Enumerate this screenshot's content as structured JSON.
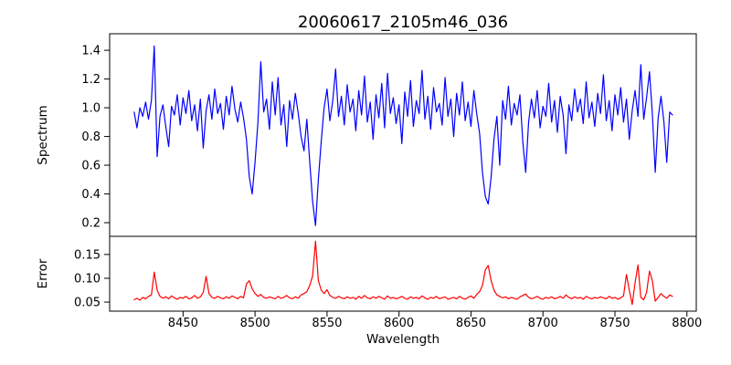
{
  "figure": {
    "background_color": "#ffffff",
    "axis_color": "#000000"
  },
  "chart_data": {
    "type": "line",
    "title": "20060617_2105m46_036",
    "xlabel": "Wavelength",
    "grid": false,
    "legend": "none",
    "xlim": [
      8399,
      8806.5
    ],
    "x_ticks": [
      8450,
      8500,
      8550,
      8600,
      8650,
      8700,
      8750,
      8800
    ],
    "x_start": 8416,
    "x_step": 2,
    "subplots": [
      {
        "name": "spectrum",
        "ylabel": "Spectrum",
        "color": "#0000ff",
        "ylim": [
          0.105,
          1.515
        ],
        "y_ticks": [
          0.2,
          0.4,
          0.6,
          0.8,
          1.0,
          1.2,
          1.4
        ],
        "y_tick_decimals": 1,
        "features_note": "absorption lines near 8498, 8542, 8662; spike to 1.43 near 8430",
        "y_values": [
          0.97,
          0.86,
          1.0,
          0.94,
          1.04,
          0.92,
          1.05,
          1.43,
          0.66,
          0.94,
          1.02,
          0.87,
          0.73,
          1.01,
          0.95,
          1.09,
          0.88,
          1.07,
          0.96,
          1.12,
          0.91,
          1.02,
          0.84,
          1.06,
          0.72,
          0.98,
          1.09,
          0.92,
          1.13,
          0.96,
          1.03,
          0.85,
          1.08,
          0.95,
          1.15,
          0.99,
          0.9,
          1.04,
          0.93,
          0.78,
          0.52,
          0.4,
          0.62,
          0.9,
          1.32,
          0.97,
          1.06,
          0.85,
          1.18,
          0.95,
          1.21,
          0.88,
          1.02,
          0.73,
          1.05,
          0.92,
          1.1,
          0.96,
          0.8,
          0.7,
          0.92,
          0.62,
          0.35,
          0.18,
          0.5,
          0.77,
          1.0,
          1.13,
          0.91,
          1.05,
          1.27,
          0.94,
          1.08,
          0.88,
          1.16,
          0.97,
          1.06,
          0.84,
          1.12,
          0.95,
          1.22,
          0.9,
          1.04,
          0.78,
          1.09,
          0.93,
          1.17,
          0.86,
          1.24,
          0.96,
          1.07,
          0.89,
          1.02,
          0.75,
          1.11,
          0.94,
          1.19,
          0.87,
          1.05,
          0.96,
          1.26,
          0.92,
          1.08,
          0.85,
          1.14,
          0.97,
          1.03,
          0.88,
          1.21,
          0.94,
          1.06,
          0.8,
          1.1,
          0.95,
          1.18,
          0.91,
          1.04,
          0.87,
          1.12,
          0.96,
          0.82,
          0.55,
          0.38,
          0.33,
          0.52,
          0.78,
          0.94,
          0.6,
          1.05,
          0.92,
          1.15,
          0.88,
          1.03,
          0.95,
          1.09,
          0.76,
          0.55,
          0.9,
          1.06,
          0.93,
          1.12,
          0.86,
          1.01,
          0.94,
          1.17,
          0.9,
          1.05,
          0.83,
          1.08,
          0.95,
          0.68,
          1.02,
          0.91,
          1.13,
          0.97,
          1.06,
          0.89,
          1.18,
          0.93,
          1.04,
          0.87,
          1.1,
          0.96,
          1.23,
          0.91,
          1.05,
          0.84,
          1.09,
          0.95,
          1.14,
          0.9,
          1.06,
          0.78,
          0.98,
          1.12,
          0.94,
          1.3,
          0.92,
          1.07,
          1.25,
          0.96,
          0.55,
          0.93,
          1.08,
          0.9,
          0.62,
          0.97,
          0.95
        ]
      },
      {
        "name": "error",
        "ylabel": "Error",
        "color": "#ff0000",
        "ylim": [
          0.031,
          0.188
        ],
        "y_ticks": [
          0.05,
          0.1,
          0.15
        ],
        "y_tick_decimals": 2,
        "features_note": "baseline ~0.06 with spikes near 8430, 8466, 8496, 8542 (0.18), 8662, 8758-8778",
        "y_values": [
          0.055,
          0.058,
          0.054,
          0.06,
          0.057,
          0.062,
          0.065,
          0.113,
          0.075,
          0.062,
          0.058,
          0.061,
          0.057,
          0.063,
          0.059,
          0.056,
          0.06,
          0.058,
          0.062,
          0.057,
          0.059,
          0.064,
          0.058,
          0.061,
          0.07,
          0.104,
          0.068,
          0.06,
          0.058,
          0.062,
          0.059,
          0.057,
          0.061,
          0.058,
          0.063,
          0.06,
          0.057,
          0.062,
          0.059,
          0.088,
          0.095,
          0.078,
          0.068,
          0.062,
          0.066,
          0.06,
          0.058,
          0.061,
          0.059,
          0.057,
          0.062,
          0.058,
          0.06,
          0.064,
          0.059,
          0.057,
          0.061,
          0.058,
          0.065,
          0.068,
          0.072,
          0.085,
          0.105,
          0.178,
          0.095,
          0.075,
          0.068,
          0.076,
          0.064,
          0.06,
          0.058,
          0.062,
          0.059,
          0.057,
          0.061,
          0.058,
          0.06,
          0.056,
          0.062,
          0.058,
          0.064,
          0.059,
          0.057,
          0.061,
          0.058,
          0.062,
          0.059,
          0.056,
          0.063,
          0.058,
          0.06,
          0.057,
          0.059,
          0.062,
          0.058,
          0.056,
          0.061,
          0.058,
          0.06,
          0.057,
          0.063,
          0.059,
          0.056,
          0.06,
          0.058,
          0.062,
          0.057,
          0.059,
          0.061,
          0.056,
          0.058,
          0.06,
          0.057,
          0.062,
          0.058,
          0.056,
          0.06,
          0.063,
          0.058,
          0.066,
          0.072,
          0.085,
          0.118,
          0.127,
          0.095,
          0.075,
          0.065,
          0.062,
          0.059,
          0.061,
          0.057,
          0.06,
          0.058,
          0.056,
          0.061,
          0.064,
          0.067,
          0.06,
          0.057,
          0.059,
          0.062,
          0.058,
          0.056,
          0.06,
          0.058,
          0.061,
          0.057,
          0.059,
          0.062,
          0.058,
          0.065,
          0.06,
          0.057,
          0.061,
          0.058,
          0.06,
          0.056,
          0.062,
          0.059,
          0.057,
          0.06,
          0.058,
          0.061,
          0.059,
          0.057,
          0.062,
          0.058,
          0.06,
          0.056,
          0.059,
          0.063,
          0.108,
          0.075,
          0.045,
          0.09,
          0.128,
          0.06,
          0.055,
          0.07,
          0.115,
          0.095,
          0.052,
          0.06,
          0.068,
          0.062,
          0.058,
          0.065,
          0.062
        ]
      }
    ]
  }
}
